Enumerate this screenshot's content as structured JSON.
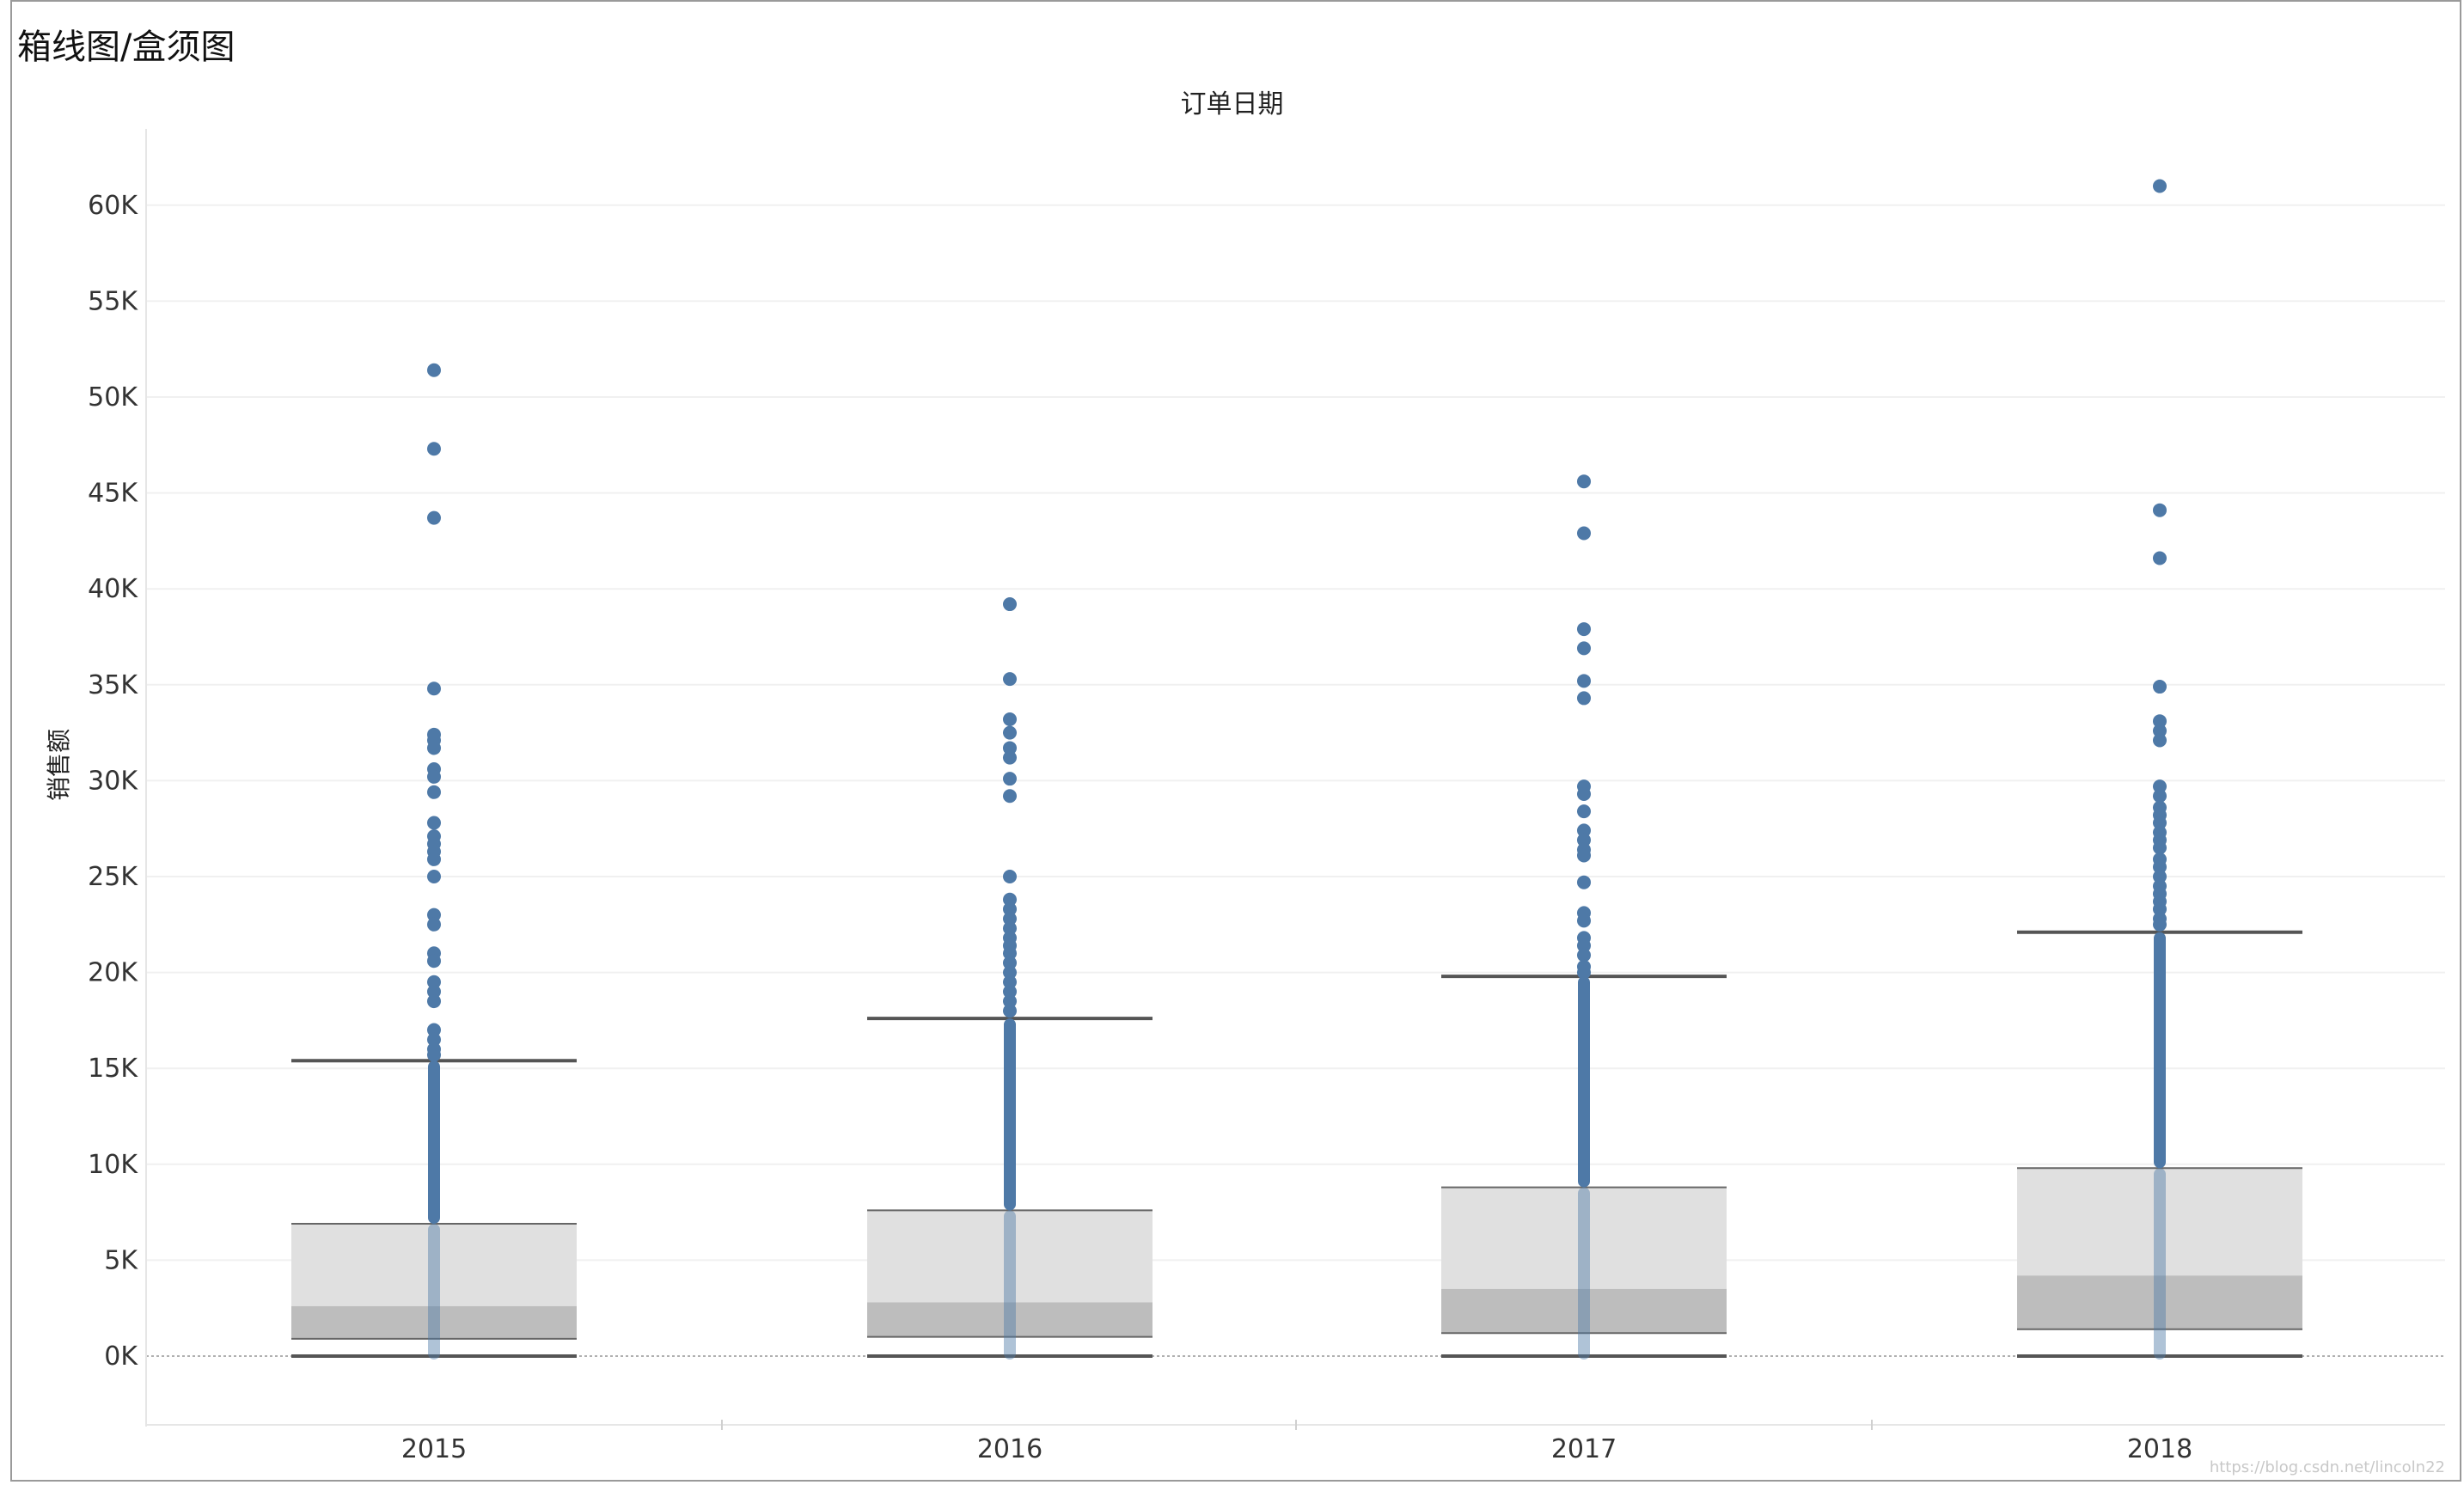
{
  "page": {
    "title": "箱线图/盒须图",
    "column_header": "订单日期",
    "watermark": "https://blog.csdn.net/lincoln22"
  },
  "chart_data": {
    "type": "box",
    "title": "箱线图/盒须图",
    "xlabel": "订单日期",
    "ylabel": "销售额",
    "categories": [
      "2015",
      "2016",
      "2017",
      "2018"
    ],
    "ylim": [
      -3500,
      63000
    ],
    "yticks": [
      0,
      5000,
      10000,
      15000,
      20000,
      25000,
      30000,
      35000,
      40000,
      45000,
      50000,
      55000,
      60000
    ],
    "ytick_labels": [
      "0K",
      "5K",
      "10K",
      "15K",
      "20K",
      "25K",
      "30K",
      "35K",
      "40K",
      "45K",
      "50K",
      "55K",
      "60K"
    ],
    "grid": true,
    "colors": {
      "points": "#4e79a7",
      "upper_box": "#e0e0e0",
      "lower_box": "#bdbdbd",
      "whisker": "#555555"
    },
    "boxes": [
      {
        "category": "2015",
        "min": 0,
        "q1": 900,
        "median": 2600,
        "q3": 6900,
        "upper_whisker": 15400,
        "outliers": [
          51400,
          47300,
          43700,
          34800,
          32400,
          32100,
          31700,
          30600,
          30200,
          29400,
          27800,
          27100,
          26700,
          26300,
          25900,
          25000,
          23000,
          22500,
          21000,
          20600,
          19500,
          19000,
          18500,
          17000,
          16500,
          16000,
          15700
        ]
      },
      {
        "category": "2016",
        "min": 0,
        "q1": 1000,
        "median": 2800,
        "q3": 7600,
        "upper_whisker": 17600,
        "outliers": [
          39200,
          35300,
          33200,
          32500,
          31700,
          31200,
          30100,
          29200,
          25000,
          23800,
          23300,
          22800,
          22300,
          21800,
          21400,
          21000,
          20500,
          20000,
          19500,
          19000,
          18500,
          18000
        ]
      },
      {
        "category": "2017",
        "min": 0,
        "q1": 1200,
        "median": 3500,
        "q3": 8800,
        "upper_whisker": 19800,
        "outliers": [
          45600,
          42900,
          37900,
          36900,
          35200,
          34300,
          29700,
          29300,
          28400,
          27400,
          26900,
          26400,
          26100,
          24700,
          23100,
          22700,
          21800,
          21400,
          20900,
          20300,
          20000
        ]
      },
      {
        "category": "2018",
        "min": 0,
        "q1": 1400,
        "median": 4200,
        "q3": 9800,
        "upper_whisker": 22100,
        "outliers": [
          61000,
          44100,
          41600,
          34900,
          33100,
          32600,
          32100,
          29700,
          29200,
          28600,
          28200,
          27800,
          27300,
          26900,
          26500,
          25900,
          25500,
          25000,
          24500,
          24100,
          23700,
          23300,
          22800,
          22500
        ]
      }
    ]
  }
}
